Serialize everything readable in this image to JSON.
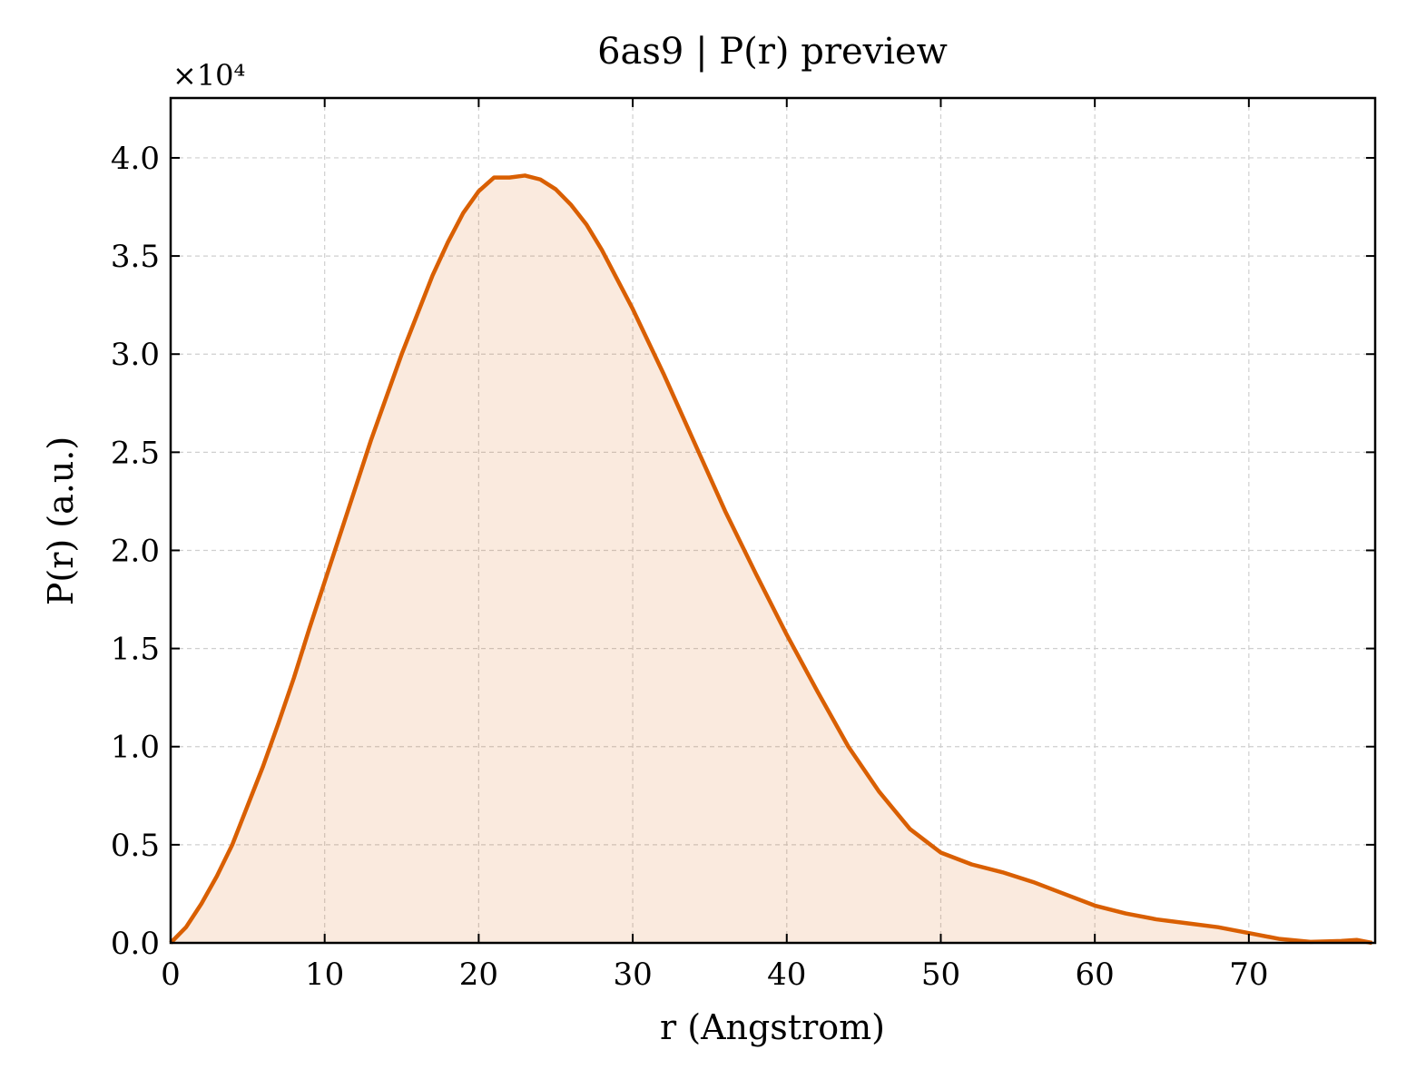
{
  "chart_data": {
    "type": "line",
    "title": "6as9 | P(r) preview",
    "x_label": "r (Angstrom)",
    "y_label": "P(r) (a.u.)",
    "y_multiplier": "×10⁴",
    "x": [
      0,
      1,
      2,
      3,
      4,
      5,
      6,
      7,
      8,
      9,
      10,
      11,
      12,
      13,
      14,
      15,
      16,
      17,
      18,
      19,
      20,
      21,
      22,
      23,
      24,
      25,
      26,
      27,
      28,
      29,
      30,
      32,
      34,
      36,
      38,
      40,
      42,
      44,
      46,
      48,
      50,
      52,
      54,
      56,
      58,
      60,
      62,
      64,
      66,
      68,
      70,
      72,
      74,
      76,
      77,
      78
    ],
    "series": [
      {
        "name": "P(r)",
        "color": "#d95f02",
        "fill": true,
        "values": [
          0,
          0.08,
          0.2,
          0.34,
          0.5,
          0.7,
          0.9,
          1.12,
          1.35,
          1.6,
          1.84,
          2.08,
          2.32,
          2.56,
          2.78,
          3.0,
          3.2,
          3.4,
          3.57,
          3.72,
          3.83,
          3.9,
          3.9,
          3.91,
          3.89,
          3.84,
          3.76,
          3.66,
          3.53,
          3.38,
          3.23,
          2.9,
          2.55,
          2.2,
          1.88,
          1.57,
          1.28,
          1.0,
          0.77,
          0.58,
          0.46,
          0.4,
          0.36,
          0.31,
          0.25,
          0.19,
          0.15,
          0.12,
          0.1,
          0.08,
          0.05,
          0.02,
          0.005,
          0.01,
          0.015,
          0
        ]
      }
    ],
    "xlim": [
      0,
      78.2
    ],
    "ylim": [
      0,
      4.305
    ],
    "xticks": [
      0,
      10,
      20,
      30,
      40,
      50,
      60,
      70
    ],
    "yticks": [
      {
        "value": 0,
        "label": "0.0"
      },
      {
        "value": 0.5,
        "label": "0.5"
      },
      {
        "value": 1,
        "label": "1.0"
      },
      {
        "value": 1.5,
        "label": "1.5"
      },
      {
        "value": 2,
        "label": "2.0"
      },
      {
        "value": 2.5,
        "label": "2.5"
      },
      {
        "value": 3,
        "label": "3.0"
      },
      {
        "value": 3.5,
        "label": "3.5"
      },
      {
        "value": 4,
        "label": "4.0"
      }
    ],
    "grid": true
  }
}
